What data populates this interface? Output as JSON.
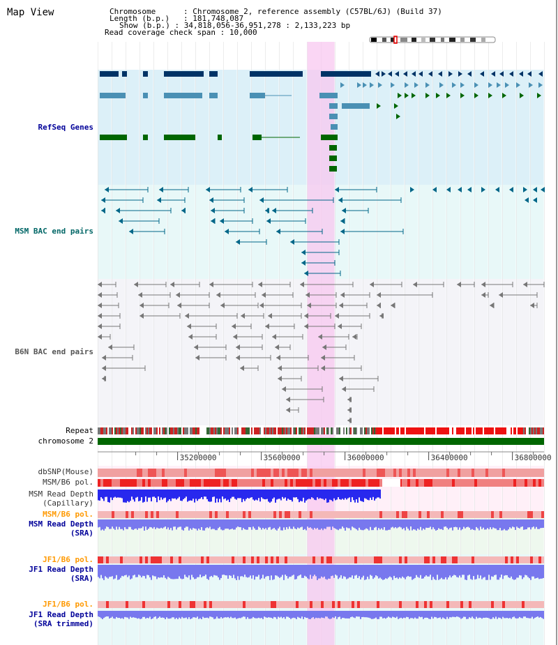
{
  "title": "Map View",
  "info": {
    "chromosome_label": "Chromosome",
    "chromosome_value": "Chromosome 2, reference assembly (C57BL/6J) (Build 37)",
    "length_label": "Length (b.p.)",
    "length_value": "181,748,087",
    "show_label": "Show (b.p.)",
    "show_value": "34,818,056-36,951,278 : 2,133,223 bp",
    "coverage_label": "Read coverage check span",
    "coverage_value": "10,000"
  },
  "tracks": {
    "refseq": "RefSeq Genes",
    "msm_bac": "MSM BAC end pairs",
    "b6n_bac": "B6N BAC end pairs",
    "repeat": "Repeat",
    "chromosome": "chromosome 2",
    "dbsnp": "dbSNP(Mouse)",
    "msm_b6_pol": "MSM/B6 pol.",
    "msm_read_depth_cap_1": "MSM Read Depth",
    "msm_read_depth_cap_2": "(Capillary)",
    "msm_b6_pol_2": "MSM/B6 pol.",
    "msm_read_depth_sra_1": "MSM Read Depth",
    "msm_read_depth_sra_2": "(SRA)",
    "jf1_b6_pol": "JF1/B6 pol.",
    "jf1_read_depth_sra_1": "JF1 Read Depth",
    "jf1_read_depth_sra_2": "(SRA)",
    "jf1_b6_pol_2": "JF1/B6 pol.",
    "jf1_read_depth_trim_1": "JF1 Read Depth",
    "jf1_read_depth_trim_2": "(SRA trimmed)"
  },
  "axis": {
    "ticks": [
      {
        "label": "35200000",
        "value": 35200000
      },
      {
        "label": "35600000",
        "value": 35600000
      },
      {
        "label": "36000000",
        "value": 36000000
      },
      {
        "label": "36400000",
        "value": 36400000
      },
      {
        "label": "36800000",
        "value": 36800000
      }
    ],
    "view_start": 34818056,
    "view_end": 36951278,
    "highlight_start": 35820000,
    "highlight_end": 35950000
  },
  "colors": {
    "refseq_bg": "#dcf0f8",
    "msm_bac_bg": "#e8f8f8",
    "b6n_bg": "#f4f4f8",
    "highlight": "#f8c8f0",
    "refseq_dark": "#003366",
    "refseq_mid": "#4a90b4",
    "refseq_green": "#006600",
    "msm_bac_line": "#006688",
    "b6n_line": "#777777",
    "chromosome_bar": "#006600",
    "depth_blue": "#2828ee",
    "depth_light": "#7878ee",
    "pol_red": "#f0a0a0",
    "label_blue": "#000099",
    "label_teal": "#006666",
    "label_orange": "#ff9900"
  }
}
